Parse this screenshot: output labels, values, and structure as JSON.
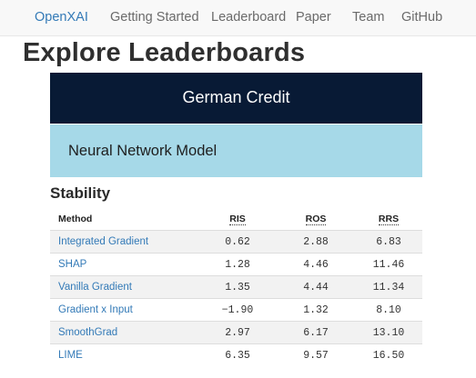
{
  "nav": {
    "brand": "OpenXAI",
    "items": [
      "Getting Started",
      "Leaderboard",
      "Paper",
      "Team",
      "GitHub"
    ]
  },
  "page_title": "Explore Leaderboards",
  "dataset": "German Credit",
  "model": "Neural Network Model",
  "section": "Stability",
  "table": {
    "headers": [
      "Method",
      "RIS",
      "ROS",
      "RRS"
    ],
    "rows": [
      [
        "Integrated Gradient",
        "0.62",
        "2.88",
        "6.83"
      ],
      [
        "SHAP",
        "1.28",
        "4.46",
        "11.46"
      ],
      [
        "Vanilla Gradient",
        "1.35",
        "4.44",
        "11.34"
      ],
      [
        "Gradient x Input",
        "−1.90",
        "1.32",
        "8.10"
      ],
      [
        "SmoothGrad",
        "2.97",
        "6.17",
        "13.10"
      ],
      [
        "LIME",
        "6.35",
        "9.57",
        "16.50"
      ]
    ]
  },
  "colors": {
    "brand": "#337ab7",
    "dataset_banner": "#081a35",
    "model_banner": "#a6d9e8"
  }
}
